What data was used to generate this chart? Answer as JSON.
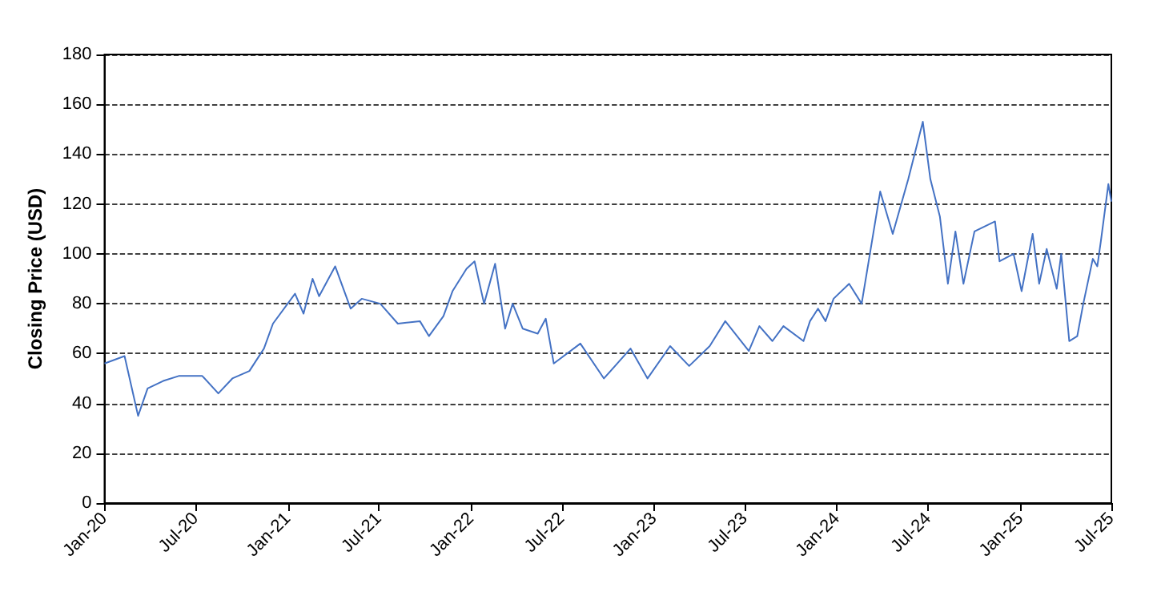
{
  "chart_data": {
    "type": "line",
    "ylabel": "Closing Price (USD)",
    "x": [
      "2020-01-01",
      "2020-02-10",
      "2020-03-08",
      "2020-03-27",
      "2020-04-27",
      "2020-05-28",
      "2020-07-14",
      "2020-08-15",
      "2020-09-12",
      "2020-10-16",
      "2020-11-14",
      "2020-12-02",
      "2021-01-15",
      "2021-02-01",
      "2021-02-19",
      "2021-03-04",
      "2021-04-05",
      "2021-05-06",
      "2021-05-28",
      "2021-07-04",
      "2021-08-08",
      "2021-09-21",
      "2021-10-09",
      "2021-11-07",
      "2021-11-25",
      "2021-12-23",
      "2022-01-08",
      "2022-01-27",
      "2022-02-18",
      "2022-03-10",
      "2022-03-25",
      "2022-04-14",
      "2022-05-14",
      "2022-05-30",
      "2022-06-15",
      "2022-08-07",
      "2022-09-23",
      "2022-11-15",
      "2022-12-19",
      "2023-02-02",
      "2023-03-12",
      "2023-04-22",
      "2023-05-23",
      "2023-07-09",
      "2023-07-30",
      "2023-08-25",
      "2023-09-16",
      "2023-10-26",
      "2023-11-08",
      "2023-11-24",
      "2023-12-09",
      "2023-12-25",
      "2024-01-25",
      "2024-02-19",
      "2024-03-27",
      "2024-04-21",
      "2024-05-22",
      "2024-06-20",
      "2024-07-05",
      "2024-07-24",
      "2024-08-09",
      "2024-08-24",
      "2024-09-09",
      "2024-10-01",
      "2024-11-11",
      "2024-11-20",
      "2024-12-18",
      "2025-01-03",
      "2025-01-25",
      "2025-02-07",
      "2025-02-22",
      "2025-03-14",
      "2025-03-23",
      "2025-04-08",
      "2025-04-24",
      "2025-05-06",
      "2025-05-25",
      "2025-06-03",
      "2025-06-10",
      "2025-06-25",
      "2025-07-01"
    ],
    "series": [
      {
        "color": "#4472c4",
        "values": [
          56,
          59,
          35,
          46,
          49,
          51,
          51,
          44,
          50,
          53,
          62,
          72,
          84,
          76,
          90,
          83,
          95,
          78,
          82,
          80,
          72,
          73,
          67,
          75,
          85,
          94,
          97,
          80,
          96,
          70,
          80,
          70,
          68,
          74,
          56,
          64,
          50,
          62,
          50,
          63,
          55,
          63,
          73,
          61,
          71,
          65,
          71,
          65,
          73,
          78,
          73,
          82,
          88,
          80,
          125,
          108,
          130,
          153,
          130,
          115,
          88,
          109,
          88,
          109,
          113,
          97,
          100,
          85,
          108,
          88,
          102,
          86,
          100,
          65,
          67,
          80,
          98,
          95,
          105,
          128,
          121
        ]
      }
    ],
    "xlim": [
      "2020-01-01",
      "2025-07-01"
    ],
    "xticks": [
      {
        "value": "2020-01-01",
        "label": "Jan-20"
      },
      {
        "value": "2020-07-01",
        "label": "Jul-20"
      },
      {
        "value": "2021-01-01",
        "label": "Jan-21"
      },
      {
        "value": "2021-07-01",
        "label": "Jul-21"
      },
      {
        "value": "2022-01-01",
        "label": "Jan-22"
      },
      {
        "value": "2022-07-01",
        "label": "Jul-22"
      },
      {
        "value": "2023-01-01",
        "label": "Jan-23"
      },
      {
        "value": "2023-07-01",
        "label": "Jul-23"
      },
      {
        "value": "2024-01-01",
        "label": "Jan-24"
      },
      {
        "value": "2024-07-01",
        "label": "Jul-24"
      },
      {
        "value": "2025-01-01",
        "label": "Jan-25"
      },
      {
        "value": "2025-07-01",
        "label": "Jul-25"
      }
    ],
    "ylim": [
      0,
      180
    ],
    "yticks": [
      0,
      20,
      40,
      60,
      80,
      100,
      120,
      140,
      160,
      180
    ],
    "grid": "y",
    "marker": "none",
    "line_style": "solid"
  }
}
